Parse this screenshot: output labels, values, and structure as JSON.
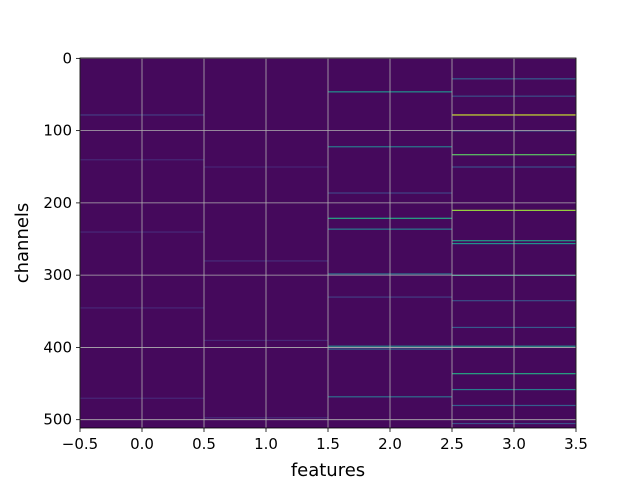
{
  "chart_data": {
    "type": "heatmap",
    "title": "",
    "xlabel": "features",
    "ylabel": "channels",
    "xlim": [
      -0.5,
      3.5
    ],
    "ylim": [
      511.5,
      -0.5
    ],
    "columns": [
      0,
      1,
      2,
      3
    ],
    "rows": 512,
    "colormap": "viridis",
    "grid": true,
    "xticks": [
      "−0.5",
      "0.0",
      "0.5",
      "1.0",
      "1.5",
      "2.0",
      "2.5",
      "3.0",
      "3.5"
    ],
    "yticks": [
      "0",
      "100",
      "200",
      "300",
      "400",
      "500"
    ],
    "background_level": 0.03,
    "bright_rows": [
      {
        "feature": 0,
        "channel": 78,
        "level": 0.22
      },
      {
        "feature": 0,
        "channel": 140,
        "level": 0.14
      },
      {
        "feature": 0,
        "channel": 240,
        "level": 0.15
      },
      {
        "feature": 0,
        "channel": 345,
        "level": 0.14
      },
      {
        "feature": 0,
        "channel": 470,
        "level": 0.14
      },
      {
        "feature": 1,
        "channel": 150,
        "level": 0.13
      },
      {
        "feature": 1,
        "channel": 280,
        "level": 0.16
      },
      {
        "feature": 1,
        "channel": 390,
        "level": 0.14
      },
      {
        "feature": 1,
        "channel": 497,
        "level": 0.15
      },
      {
        "feature": 2,
        "channel": 46,
        "level": 0.5
      },
      {
        "feature": 2,
        "channel": 122,
        "level": 0.45
      },
      {
        "feature": 2,
        "channel": 186,
        "level": 0.25
      },
      {
        "feature": 2,
        "channel": 221,
        "level": 0.6
      },
      {
        "feature": 2,
        "channel": 236,
        "level": 0.45
      },
      {
        "feature": 2,
        "channel": 298,
        "level": 0.42
      },
      {
        "feature": 2,
        "channel": 330,
        "level": 0.22
      },
      {
        "feature": 2,
        "channel": 398,
        "level": 0.48
      },
      {
        "feature": 2,
        "channel": 402,
        "level": 0.38
      },
      {
        "feature": 2,
        "channel": 468,
        "level": 0.42
      },
      {
        "feature": 3,
        "channel": 28,
        "level": 0.38
      },
      {
        "feature": 3,
        "channel": 52,
        "level": 0.3
      },
      {
        "feature": 3,
        "channel": 78,
        "level": 0.92
      },
      {
        "feature": 3,
        "channel": 100,
        "level": 0.35
      },
      {
        "feature": 3,
        "channel": 133,
        "level": 0.75
      },
      {
        "feature": 3,
        "channel": 150,
        "level": 0.3
      },
      {
        "feature": 3,
        "channel": 210,
        "level": 0.85
      },
      {
        "feature": 3,
        "channel": 252,
        "level": 0.55
      },
      {
        "feature": 3,
        "channel": 256,
        "level": 0.5
      },
      {
        "feature": 3,
        "channel": 300,
        "level": 0.52
      },
      {
        "feature": 3,
        "channel": 335,
        "level": 0.3
      },
      {
        "feature": 3,
        "channel": 372,
        "level": 0.35
      },
      {
        "feature": 3,
        "channel": 398,
        "level": 0.5
      },
      {
        "feature": 3,
        "channel": 436,
        "level": 0.6
      },
      {
        "feature": 3,
        "channel": 458,
        "level": 0.45
      },
      {
        "feature": 3,
        "channel": 480,
        "level": 0.38
      },
      {
        "feature": 3,
        "channel": 505,
        "level": 0.3
      }
    ]
  }
}
